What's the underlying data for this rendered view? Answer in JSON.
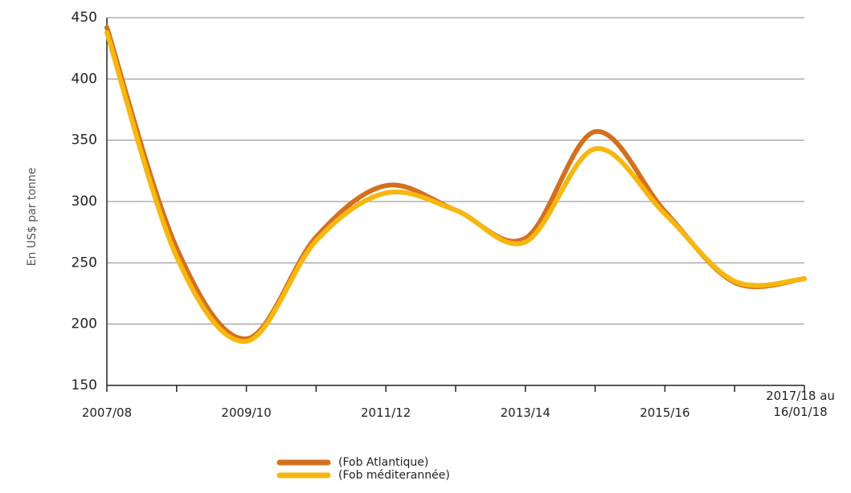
{
  "chart_data": {
    "type": "line",
    "y_label": "En US$ par tonne",
    "categories": [
      "2007/08",
      null,
      "2009/10",
      null,
      "2011/12",
      null,
      "2013/14",
      null,
      "2015/16",
      null,
      "2017/18 au 16/01/18"
    ],
    "series": [
      {
        "name": "(Fob Atlantique)",
        "color": "#d4701e",
        "values": [
          442,
          262,
          188,
          271,
          313,
          293,
          270,
          357,
          292,
          234,
          237
        ]
      },
      {
        "name": "(Fob méditerannée)",
        "color": "#f7b70f",
        "values": [
          438,
          255,
          186,
          268,
          307,
          293,
          267,
          343,
          290,
          235,
          237
        ]
      }
    ],
    "ylim": [
      150,
      450
    ],
    "yticks": [
      150,
      200,
      250,
      300,
      350,
      400,
      450
    ],
    "grid": true
  }
}
